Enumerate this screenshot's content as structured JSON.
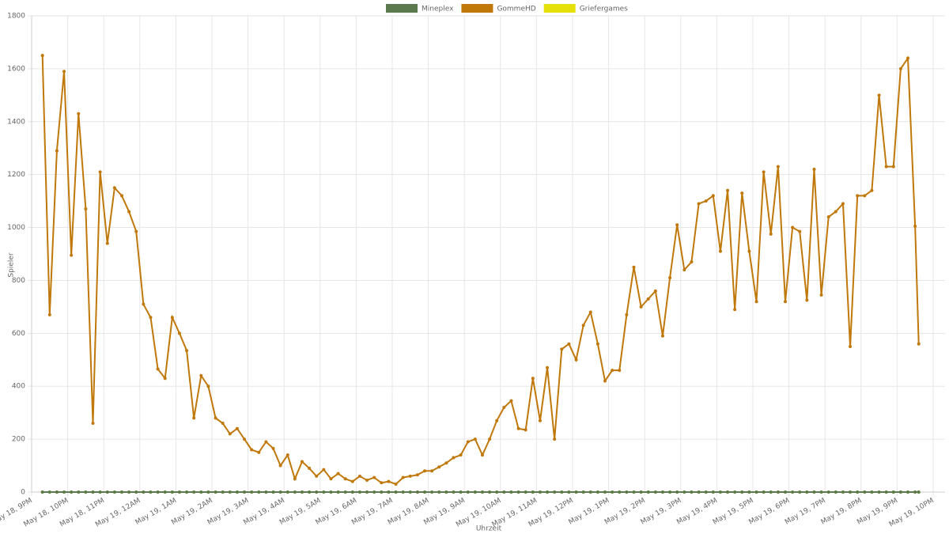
{
  "chart_data": {
    "type": "line",
    "ylabel": "Spieler",
    "xlabel": "Uhrzeit",
    "x": [
      0.3,
      0.5,
      0.7,
      0.9,
      1.1,
      1.3,
      1.5,
      1.7,
      1.9,
      2.1,
      2.3,
      2.5,
      2.7,
      2.9,
      3.1,
      3.3,
      3.5,
      3.7,
      3.9,
      4.1,
      4.3,
      4.5,
      4.7,
      4.9,
      5.1,
      5.3,
      5.5,
      5.7,
      5.9,
      6.1,
      6.3,
      6.5,
      6.7,
      6.9,
      7.1,
      7.3,
      7.5,
      7.7,
      7.9,
      8.1,
      8.3,
      8.5,
      8.7,
      8.9,
      9.1,
      9.3,
      9.5,
      9.7,
      9.9,
      10.1,
      10.3,
      10.5,
      10.7,
      10.9,
      11.1,
      11.3,
      11.5,
      11.7,
      11.9,
      12.1,
      12.3,
      12.5,
      12.7,
      12.9,
      13.1,
      13.3,
      13.5,
      13.7,
      13.9,
      14.1,
      14.3,
      14.5,
      14.7,
      14.9,
      15.1,
      15.3,
      15.5,
      15.7,
      15.9,
      16.1,
      16.3,
      16.5,
      16.7,
      16.9,
      17.1,
      17.3,
      17.5,
      17.7,
      17.9,
      18.1,
      18.3,
      18.5,
      18.7,
      18.9,
      19.1,
      19.3,
      19.5,
      19.7,
      19.9,
      20.1,
      20.3,
      20.5,
      20.7,
      20.9,
      21.1,
      21.3,
      21.5,
      21.7,
      21.9,
      22.1,
      22.3,
      22.5,
      22.7,
      22.9,
      23.1,
      23.3,
      23.5,
      23.7,
      23.9,
      24.1,
      24.3,
      24.5,
      24.6
    ],
    "series": [
      {
        "name": "Griefergames",
        "color": "#e6e00a",
        "values": [
          0,
          0,
          0,
          0,
          0,
          0,
          0,
          0,
          0,
          0,
          0,
          0,
          0,
          0,
          0,
          0,
          0,
          0,
          0,
          0,
          0,
          0,
          0,
          0,
          0,
          0,
          0,
          0,
          0,
          0,
          0,
          0,
          0,
          0,
          0,
          0,
          0,
          0,
          0,
          0,
          0,
          0,
          0,
          0,
          0,
          0,
          0,
          0,
          0,
          0,
          0,
          0,
          0,
          0,
          0,
          0,
          0,
          0,
          0,
          0,
          0,
          0,
          0,
          0,
          0,
          0,
          0,
          0,
          0,
          0,
          0,
          0,
          0,
          0,
          0,
          0,
          0,
          0,
          0,
          0,
          0,
          0,
          0,
          0,
          0,
          0,
          0,
          0,
          0,
          0,
          0,
          0,
          0,
          0,
          0,
          0,
          0,
          0,
          0,
          0,
          0,
          0,
          0,
          0,
          0,
          0,
          0,
          0,
          0,
          0,
          0,
          0,
          0,
          0,
          0,
          0,
          0,
          0,
          0,
          0,
          0,
          0,
          0
        ]
      },
      {
        "name": "GommeHD",
        "color": "#c0780a",
        "values": [
          1650,
          670,
          1290,
          1590,
          895,
          1430,
          1070,
          260,
          1210,
          940,
          1150,
          1120,
          1060,
          985,
          710,
          660,
          465,
          430,
          660,
          600,
          535,
          280,
          440,
          400,
          280,
          260,
          220,
          240,
          200,
          160,
          150,
          190,
          165,
          100,
          140,
          50,
          115,
          90,
          60,
          85,
          50,
          70,
          50,
          40,
          60,
          45,
          55,
          35,
          40,
          30,
          55,
          60,
          65,
          80,
          80,
          95,
          110,
          130,
          140,
          190,
          200,
          140,
          200,
          270,
          320,
          345,
          240,
          235,
          430,
          270,
          470,
          200,
          540,
          560,
          500,
          630,
          680,
          560,
          420,
          460,
          460,
          670,
          850,
          700,
          730,
          760,
          590,
          810,
          1010,
          840,
          870,
          1090,
          1100,
          1120,
          910,
          1140,
          690,
          1130,
          910,
          720,
          1210,
          975,
          1230,
          720,
          1000,
          985,
          725,
          1220,
          745,
          1040,
          1060,
          1090,
          550,
          1120,
          1120,
          1140,
          1500,
          1230,
          1230,
          1600,
          1640,
          1005,
          560
        ]
      },
      {
        "name": "Mineplex",
        "color": "#5b7a4e",
        "values": [
          0,
          0,
          0,
          0,
          0,
          0,
          0,
          0,
          0,
          0,
          0,
          0,
          0,
          0,
          0,
          0,
          0,
          0,
          0,
          0,
          0,
          0,
          0,
          0,
          0,
          0,
          0,
          0,
          0,
          0,
          0,
          0,
          0,
          0,
          0,
          0,
          0,
          0,
          0,
          0,
          0,
          0,
          0,
          0,
          0,
          0,
          0,
          0,
          0,
          0,
          0,
          0,
          0,
          0,
          0,
          0,
          0,
          0,
          0,
          0,
          0,
          0,
          0,
          0,
          0,
          0,
          0,
          0,
          0,
          0,
          0,
          0,
          0,
          0,
          0,
          0,
          0,
          0,
          0,
          0,
          0,
          0,
          0,
          0,
          0,
          0,
          0,
          0,
          0,
          0,
          0,
          0,
          0,
          0,
          0,
          0,
          0,
          0,
          0,
          0,
          0,
          0,
          0,
          0,
          0,
          0,
          0,
          0,
          0,
          0,
          0,
          0,
          0,
          0,
          0,
          0,
          0,
          0,
          0,
          0,
          0,
          0,
          0
        ]
      }
    ],
    "legend_order": [
      "Mineplex",
      "GommeHD",
      "Griefergames"
    ],
    "xlim": [
      0,
      25.33
    ],
    "ylim": [
      0,
      1800
    ],
    "yticks": [
      0,
      200,
      400,
      600,
      800,
      1000,
      1200,
      1400,
      1600,
      1800
    ],
    "xticks": [
      {
        "value": 0,
        "label": "May 18, 9PM"
      },
      {
        "value": 1,
        "label": "May 18, 10PM"
      },
      {
        "value": 2,
        "label": "May 18, 11PM"
      },
      {
        "value": 3,
        "label": "May 19, 12AM"
      },
      {
        "value": 4,
        "label": "May 19, 1AM"
      },
      {
        "value": 5,
        "label": "May 19, 2AM"
      },
      {
        "value": 6,
        "label": "May 19, 3AM"
      },
      {
        "value": 7,
        "label": "May 19, 4AM"
      },
      {
        "value": 8,
        "label": "May 19, 5AM"
      },
      {
        "value": 9,
        "label": "May 19, 6AM"
      },
      {
        "value": 10,
        "label": "May 19, 7AM"
      },
      {
        "value": 11,
        "label": "May 19, 8AM"
      },
      {
        "value": 12,
        "label": "May 19, 9AM"
      },
      {
        "value": 13,
        "label": "May 19, 10AM"
      },
      {
        "value": 14,
        "label": "May 19, 11AM"
      },
      {
        "value": 15,
        "label": "May 19, 12PM"
      },
      {
        "value": 16,
        "label": "May 19, 1PM"
      },
      {
        "value": 17,
        "label": "May 19, 2PM"
      },
      {
        "value": 18,
        "label": "May 19, 3PM"
      },
      {
        "value": 19,
        "label": "May 19, 4PM"
      },
      {
        "value": 20,
        "label": "May 19, 5PM"
      },
      {
        "value": 21,
        "label": "May 19, 6PM"
      },
      {
        "value": 22,
        "label": "May 19, 7PM"
      },
      {
        "value": 23,
        "label": "May 19, 8PM"
      },
      {
        "value": 24,
        "label": "May 19, 9PM"
      },
      {
        "value": 25,
        "label": "May 19, 10PM"
      }
    ],
    "grid": true
  }
}
